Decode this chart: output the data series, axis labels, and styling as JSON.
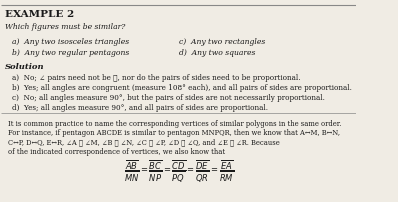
{
  "title": "EXAMPLE 2",
  "question": "Which figures must be similar?",
  "choices_left": [
    "a)  Any two isosceles triangles",
    "b)  Any two regular pentagons"
  ],
  "choices_right": [
    "c)  Any two rectangles",
    "d)  Any two squares"
  ],
  "solution_header": "Solution",
  "solution_lines": [
    "a)  No; ∠ pairs need not be ≅, nor do the pairs of sides need to be proportional.",
    "b)  Yes; all angles are congruent (measure 108° each), and all pairs of sides are proportional.",
    "c)  No; all angles measure 90°, but the pairs of sides are not necessarily proportional.",
    "d)  Yes; all angles measure 90°, and all pairs of sides are proportional."
  ],
  "paragraph": "It is common practice to name the corresponding vertices of similar polygons in the same order.\nFor instance, if pentagon ABCDE is similar to pentagon MNPQR, then we know that A↔M, B↔N,\nC↔P, D↔Q, E↔R, ∠A ≅ ∠M, ∠B ≅ ∠N, ∠C ≅ ∠P, ∠D ≅ ∠Q, and ∠E ≅ ∠R. Because\nof the indicated correspondence of vertices, we also know that",
  "fraction_str": "$\\dfrac{\\overline{AB}}{\\overline{MN}} = \\dfrac{\\overline{BC}}{\\overline{NP}} = \\dfrac{\\overline{CD}}{\\overline{PQ}} = \\dfrac{\\overline{DE}}{\\overline{QR}} = \\dfrac{\\overline{EA}}{\\overline{RM}}$",
  "bg_color": "#f0ece4",
  "text_color": "#1a1a1a",
  "hr_color": "#888888"
}
